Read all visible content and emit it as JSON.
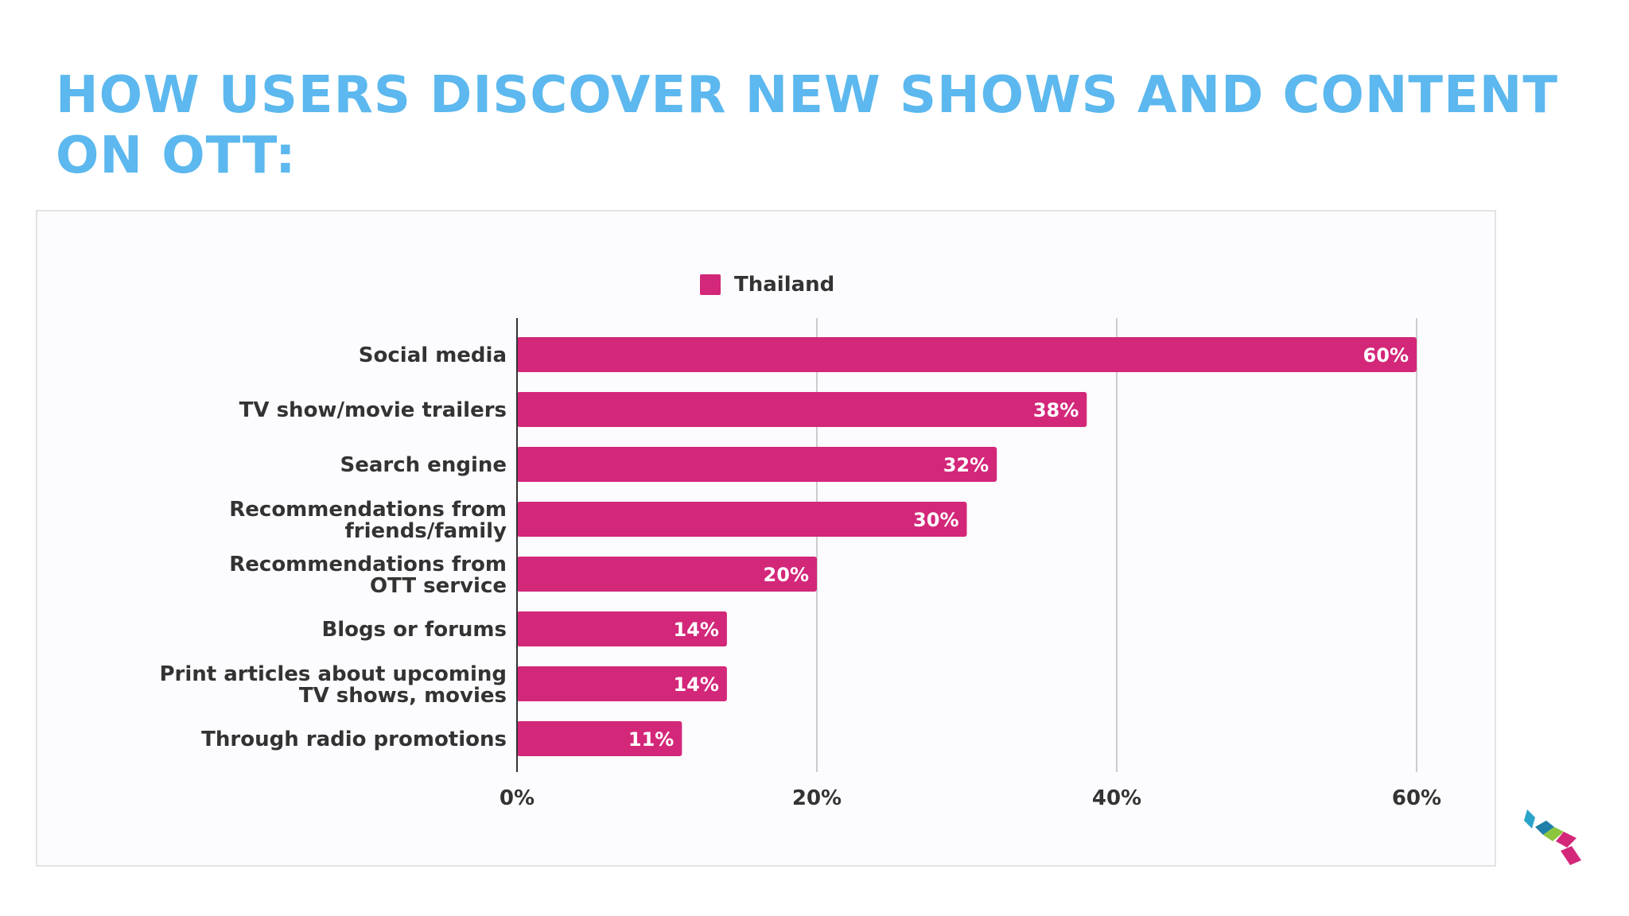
{
  "slide": {
    "title": "HOW USERS DISCOVER NEW SHOWS AND CONTENT ON OTT:"
  },
  "colors": {
    "title": "#5cb8ee",
    "bar": "#d3277a",
    "axis": "#333333",
    "grid": "#cccccc"
  },
  "chart_data": {
    "type": "bar",
    "orientation": "horizontal",
    "title": "",
    "xlabel": "",
    "ylabel": "",
    "categories": [
      "Social media",
      "TV show/movie trailers",
      "Search engine",
      "Recommendations from friends/family",
      "Recommendations from OTT service",
      "Blogs or forums",
      "Print articles about upcoming TV shows, movies",
      "Through radio promotions"
    ],
    "series": [
      {
        "name": "Thailand",
        "values": [
          60,
          38,
          32,
          30,
          20,
          14,
          14,
          11
        ],
        "labels": [
          "60%",
          "38%",
          "32%",
          "30%",
          "20%",
          "14%",
          "14%",
          "11%"
        ]
      }
    ],
    "xlim": [
      0,
      60
    ],
    "xticks": [
      "0%",
      "20%",
      "40%",
      "60%"
    ],
    "grid": true,
    "legend": "top-center"
  },
  "logo": {
    "name": "brand-logo",
    "colors": [
      "#2aa3c9",
      "#8cc63f",
      "#d3277a",
      "#1f7fa8"
    ]
  }
}
